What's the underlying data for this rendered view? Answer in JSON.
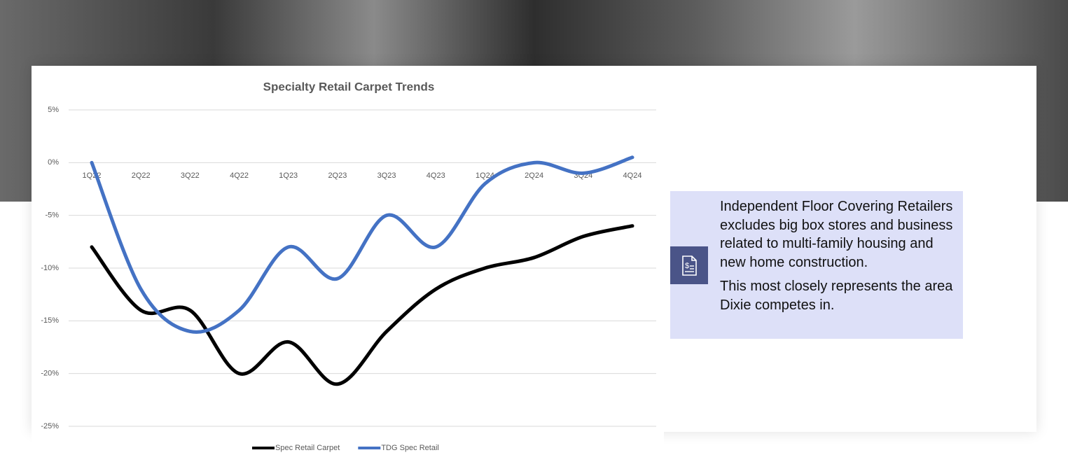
{
  "chart_data": {
    "type": "line",
    "title": "Specialty Retail Carpet Trends",
    "categories": [
      "1Q22",
      "2Q22",
      "3Q22",
      "4Q22",
      "1Q23",
      "2Q23",
      "3Q23",
      "4Q23",
      "1Q24",
      "2Q24",
      "3Q24",
      "4Q24"
    ],
    "series": [
      {
        "name": "Spec Retail Carpet",
        "color": "#000000",
        "values": [
          -8,
          -14,
          -14,
          -20,
          -17,
          -21,
          -16,
          -12,
          -10,
          -9,
          -7,
          -6
        ]
      },
      {
        "name": "TDG Spec Retail",
        "color": "#4472c4",
        "values": [
          0,
          -12,
          -16,
          -14,
          -8,
          -11,
          -5,
          -8,
          -2,
          0,
          -1,
          0.5
        ]
      }
    ],
    "ylim": [
      -25,
      5
    ],
    "yticks": [
      {
        "value": -25,
        "label": "-25%"
      },
      {
        "value": -20,
        "label": "-20%"
      },
      {
        "value": -15,
        "label": "-15%"
      },
      {
        "value": -10,
        "label": "-10%"
      },
      {
        "value": -5,
        "label": "-5%"
      },
      {
        "value": 0,
        "label": "0%"
      },
      {
        "value": 5,
        "label": "5%"
      }
    ],
    "grid": true,
    "smooth": true,
    "legend": "bottom"
  },
  "note": {
    "paragraphs": [
      "Independent Floor Covering Retailers excludes big box stores and business related to multi-family housing and new home construction.",
      "This most closely represents the area Dixie competes in."
    ]
  }
}
